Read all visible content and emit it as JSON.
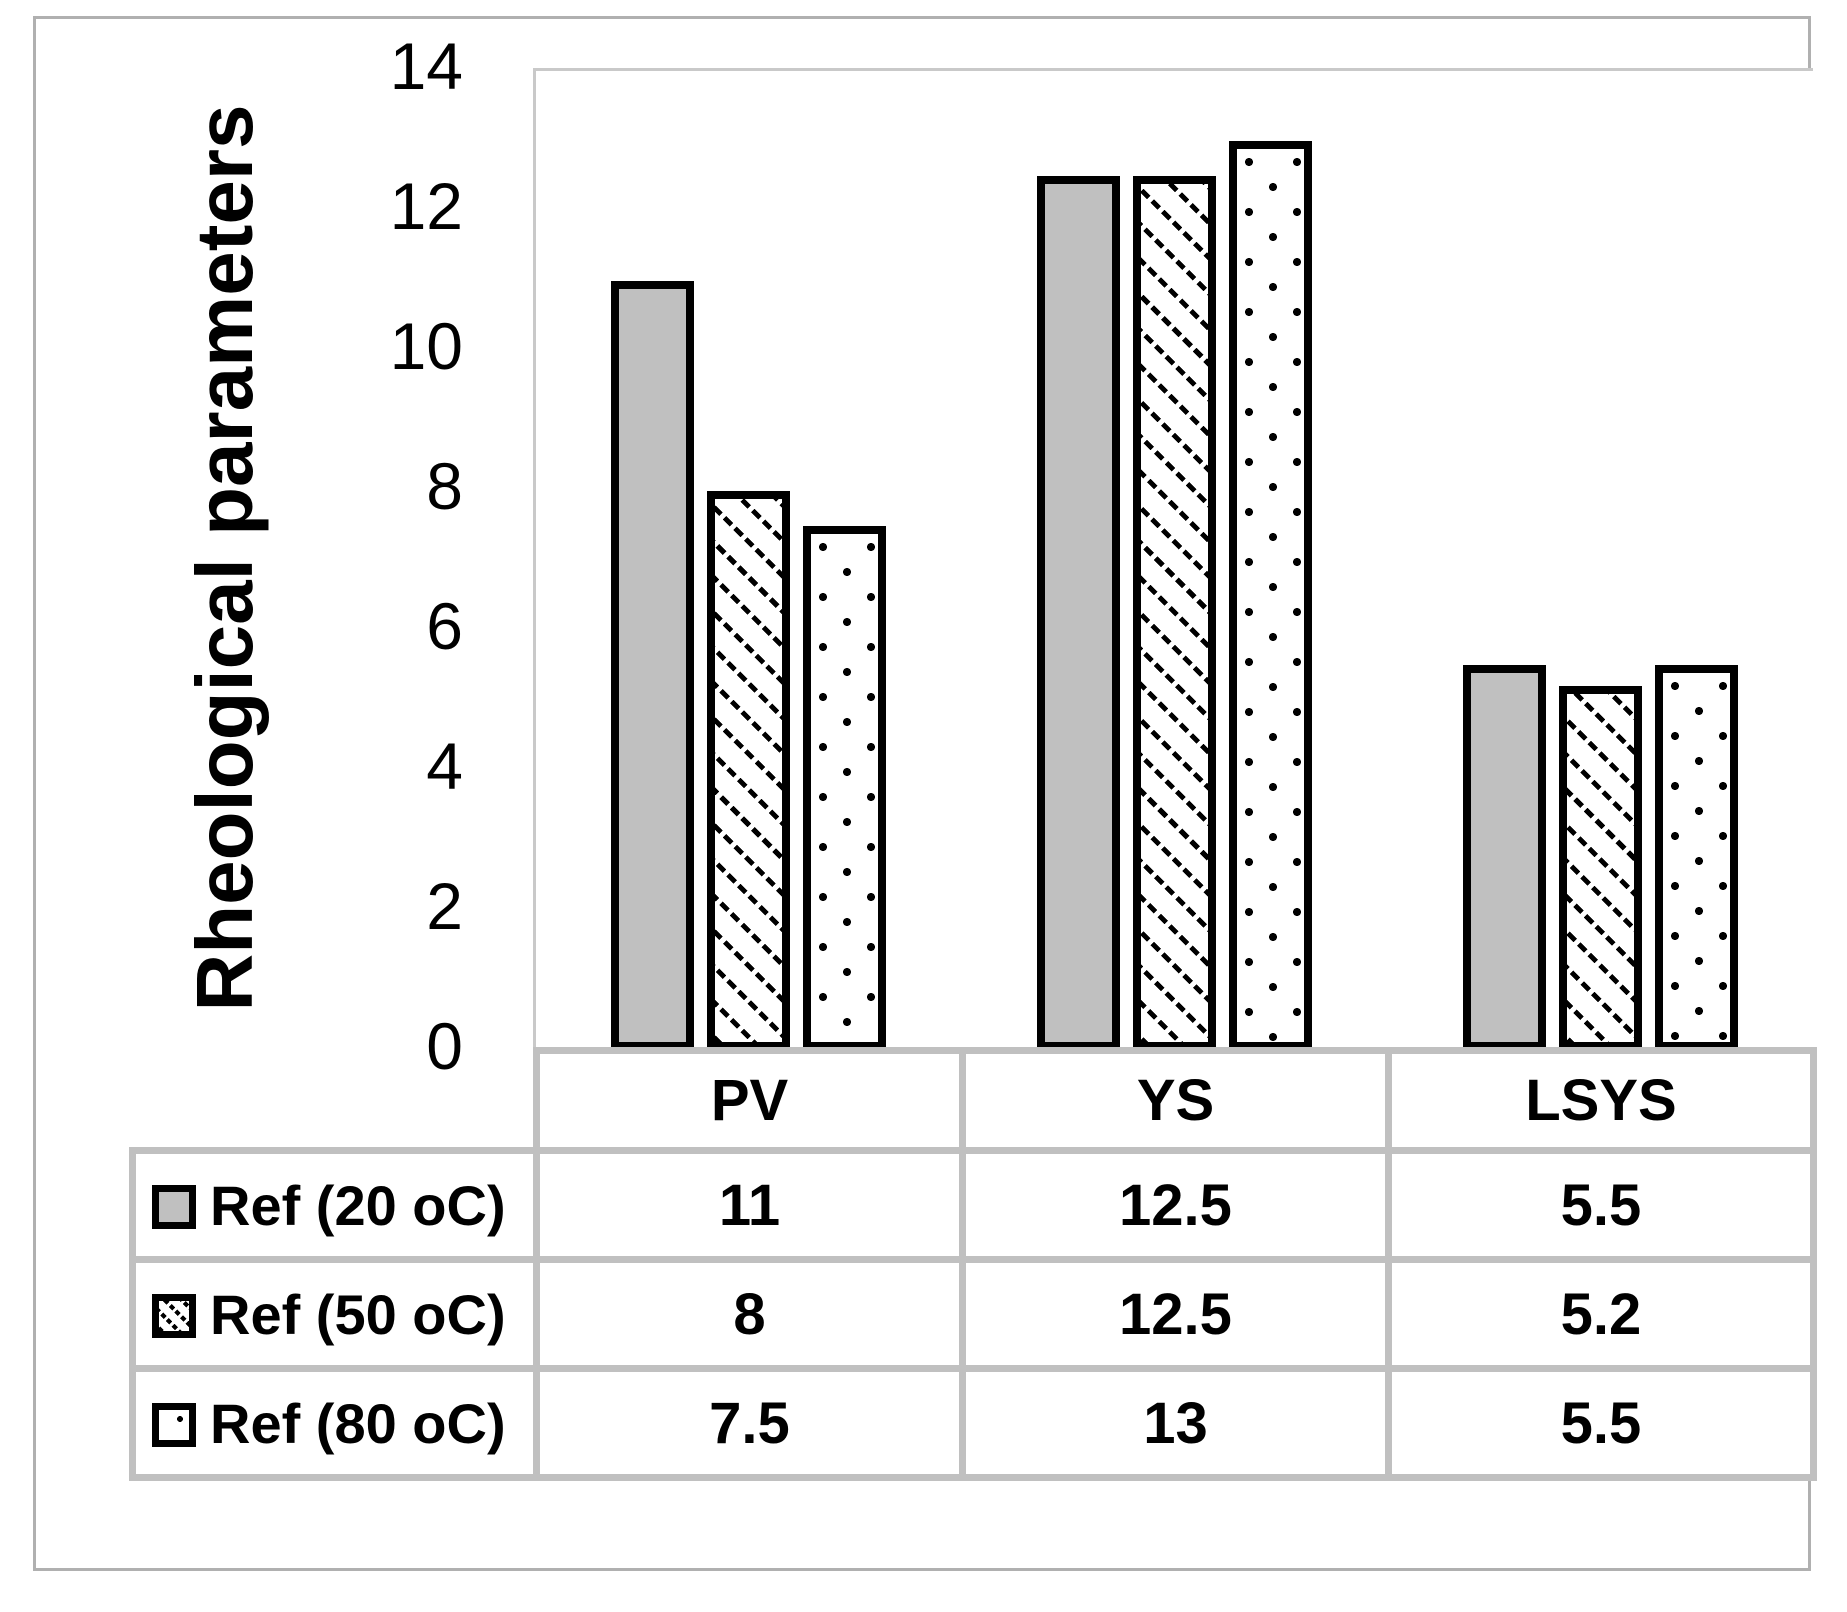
{
  "figure": {
    "y_ticks": [
      14,
      12,
      10,
      8,
      6,
      4,
      2,
      0
    ]
  },
  "chart_data": {
    "type": "bar",
    "title": "",
    "ylabel": "Rheological parameters",
    "xlabel": "",
    "ylim": [
      0,
      14
    ],
    "ytick_step": 2,
    "grid": false,
    "legend_position": "data-table-row-labels",
    "categories": [
      "PV",
      "YS",
      "LSYS"
    ],
    "series": [
      {
        "name": "Ref (20 oC)",
        "pattern": "solid",
        "fill": "#c0c0c0",
        "values": [
          11,
          12.5,
          5.5
        ]
      },
      {
        "name": "Ref (50 oC)",
        "pattern": "hatch",
        "fill": "#ffffff",
        "values": [
          8,
          12.5,
          5.2
        ]
      },
      {
        "name": "Ref (80 oC)",
        "pattern": "dots",
        "fill": "#ffffff",
        "values": [
          7.5,
          13,
          5.5
        ]
      }
    ],
    "data_table": {
      "shown": true,
      "columns": [
        "PV",
        "YS",
        "LSYS"
      ],
      "rows": [
        {
          "label": "Ref (20 oC)",
          "values": [
            "11",
            "12.5",
            "5.5"
          ]
        },
        {
          "label": "Ref (50 oC)",
          "values": [
            "8",
            "12.5",
            "5.2"
          ]
        },
        {
          "label": "Ref (80 oC)",
          "values": [
            "7.5",
            "13",
            "5.5"
          ]
        }
      ]
    }
  },
  "colors": {
    "bar_fill_gray": "#c0c0c0",
    "bar_border": "#000000",
    "table_border": "#c0c0c0",
    "plot_border": "#c9c9c9",
    "figure_border": "#b0b0b0",
    "text": "#000000",
    "background": "#ffffff"
  }
}
